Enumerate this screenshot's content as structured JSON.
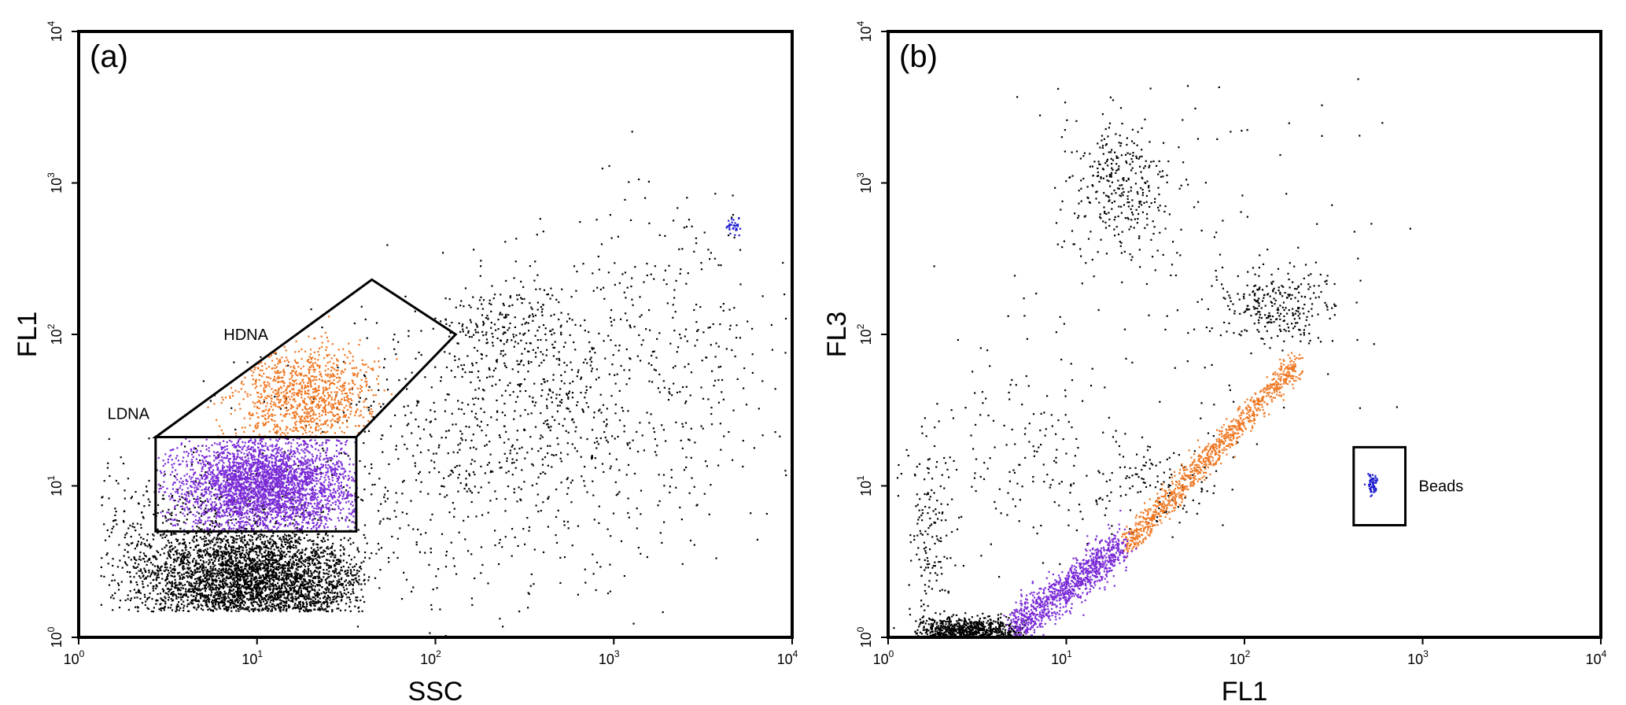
{
  "chart_data": [
    {
      "type": "scatter",
      "panel_label": "(a)",
      "xlabel": "SSC",
      "ylabel": "FL1",
      "xscale": "log",
      "yscale": "log",
      "xlim": [
        1,
        10000
      ],
      "ylim": [
        1,
        10000
      ],
      "ticks": [
        {
          "base": "10",
          "exp": "0",
          "value": 1
        },
        {
          "base": "10",
          "exp": "1",
          "value": 10
        },
        {
          "base": "10",
          "exp": "2",
          "value": 100
        },
        {
          "base": "10",
          "exp": "3",
          "value": 1000
        },
        {
          "base": "10",
          "exp": "4",
          "value": 10000
        }
      ],
      "gates": [
        {
          "name": "LDNA",
          "label_anchor": [
            1.45,
            30
          ],
          "vertices": [
            [
              2.7,
              21
            ],
            [
              36,
              21
            ],
            [
              36,
              5
            ],
            [
              2.7,
              5
            ]
          ]
        },
        {
          "name": "HDNA",
          "label_anchor": [
            6.5,
            100
          ],
          "vertices": [
            [
              2.7,
              21
            ],
            [
              44,
              230
            ],
            [
              130,
              100
            ],
            [
              36,
              21
            ]
          ]
        }
      ],
      "series": [
        {
          "color": "#000000",
          "clusters": [
            {
              "center": [
                10,
                2.3
              ],
              "spread": [
                0.32,
                0.18
              ],
              "count": 2800,
              "xrange": [
                2.0,
                40
              ],
              "yrange": [
                1.5,
                5
              ]
            },
            {
              "center": [
                5,
                3.5
              ],
              "spread": [
                0.42,
                0.28
              ],
              "count": 900,
              "xrange": [
                1.3,
                50
              ],
              "yrange": [
                1.5,
                25
              ]
            },
            {
              "center": [
                260,
                110
              ],
              "spread": [
                0.2,
                0.2
              ],
              "count": 230
            },
            {
              "center": [
                500,
                30
              ],
              "spread": [
                0.55,
                0.4
              ],
              "count": 650
            },
            {
              "center": [
                100,
                10
              ],
              "spread": [
                0.6,
                0.5
              ],
              "count": 420
            },
            {
              "center": [
                2000,
                200
              ],
              "spread": [
                0.35,
                0.35
              ],
              "count": 160
            }
          ]
        },
        {
          "color": "#ee7722",
          "clusters": [
            {
              "center": [
                18,
                40
              ],
              "spread": [
                0.2,
                0.16
              ],
              "count": 1000,
              "gate": "HDNA"
            }
          ]
        },
        {
          "color": "#7a2ad6",
          "clusters": [
            {
              "center": [
                11,
                10
              ],
              "spread": [
                0.27,
                0.17
              ],
              "count": 3000,
              "gate": "LDNA"
            }
          ]
        },
        {
          "color": "#1a1acc",
          "clusters": [
            {
              "center": [
                4600,
                530
              ],
              "spread": [
                0.02,
                0.02
              ],
              "count": 35
            }
          ]
        }
      ]
    },
    {
      "type": "scatter",
      "panel_label": "(b)",
      "xlabel": "FL1",
      "ylabel": "FL3",
      "xscale": "log",
      "yscale": "log",
      "xlim": [
        1,
        10000
      ],
      "ylim": [
        1,
        10000
      ],
      "ticks": [
        {
          "base": "10",
          "exp": "0",
          "value": 1
        },
        {
          "base": "10",
          "exp": "1",
          "value": 10
        },
        {
          "base": "10",
          "exp": "2",
          "value": 100
        },
        {
          "base": "10",
          "exp": "3",
          "value": 1000
        },
        {
          "base": "10",
          "exp": "4",
          "value": 10000
        }
      ],
      "gates": [
        {
          "name": "Beads",
          "label_anchor": [
            950,
            10
          ],
          "vertices": [
            [
              410,
              18
            ],
            [
              800,
              18
            ],
            [
              800,
              5.5
            ],
            [
              410,
              5.5
            ]
          ]
        }
      ],
      "series": [
        {
          "color": "#000000",
          "clusters": [
            {
              "center": [
                2.8,
                1.1
              ],
              "spread": [
                0.17,
                0.05
              ],
              "count": 700,
              "xrange": [
                1.4,
                6
              ],
              "yrange": [
                1.0,
                1.5
              ]
            },
            {
              "center": [
                20,
                1000
              ],
              "spread": [
                0.15,
                0.2
              ],
              "count": 300
            },
            {
              "center": [
                150,
                160
              ],
              "spread": [
                0.15,
                0.12
              ],
              "count": 260
            },
            {
              "center": [
                1.7,
                5
              ],
              "spread": [
                0.06,
                0.3
              ],
              "count": 150
            },
            {
              "center": [
                6,
                15
              ],
              "spread": [
                0.3,
                0.3
              ],
              "count": 160
            },
            {
              "center": [
                40,
                300
              ],
              "spread": [
                0.5,
                0.55
              ],
              "count": 150
            },
            {
              "center": [
                30,
                10
              ],
              "spread": [
                0.2,
                0.15
              ],
              "count": 120
            }
          ]
        },
        {
          "color": "#ee7722",
          "clusters": [
            {
              "diagonal": true,
              "x_from": 21,
              "x_to": 200,
              "y_at_x_from": 4,
              "slope": 1.25,
              "spread": 0.05,
              "count": 1000
            }
          ]
        },
        {
          "color": "#7a2ad6",
          "clusters": [
            {
              "diagonal": true,
              "x_from": 5,
              "x_to": 21,
              "y_at_x_from": 1.15,
              "slope": 0.9,
              "spread": 0.07,
              "count": 1000
            }
          ]
        },
        {
          "color": "#1a1acc",
          "clusters": [
            {
              "center": [
                520,
                10.5
              ],
              "spread": [
                0.015,
                0.04
              ],
              "count": 55
            }
          ]
        }
      ]
    }
  ]
}
